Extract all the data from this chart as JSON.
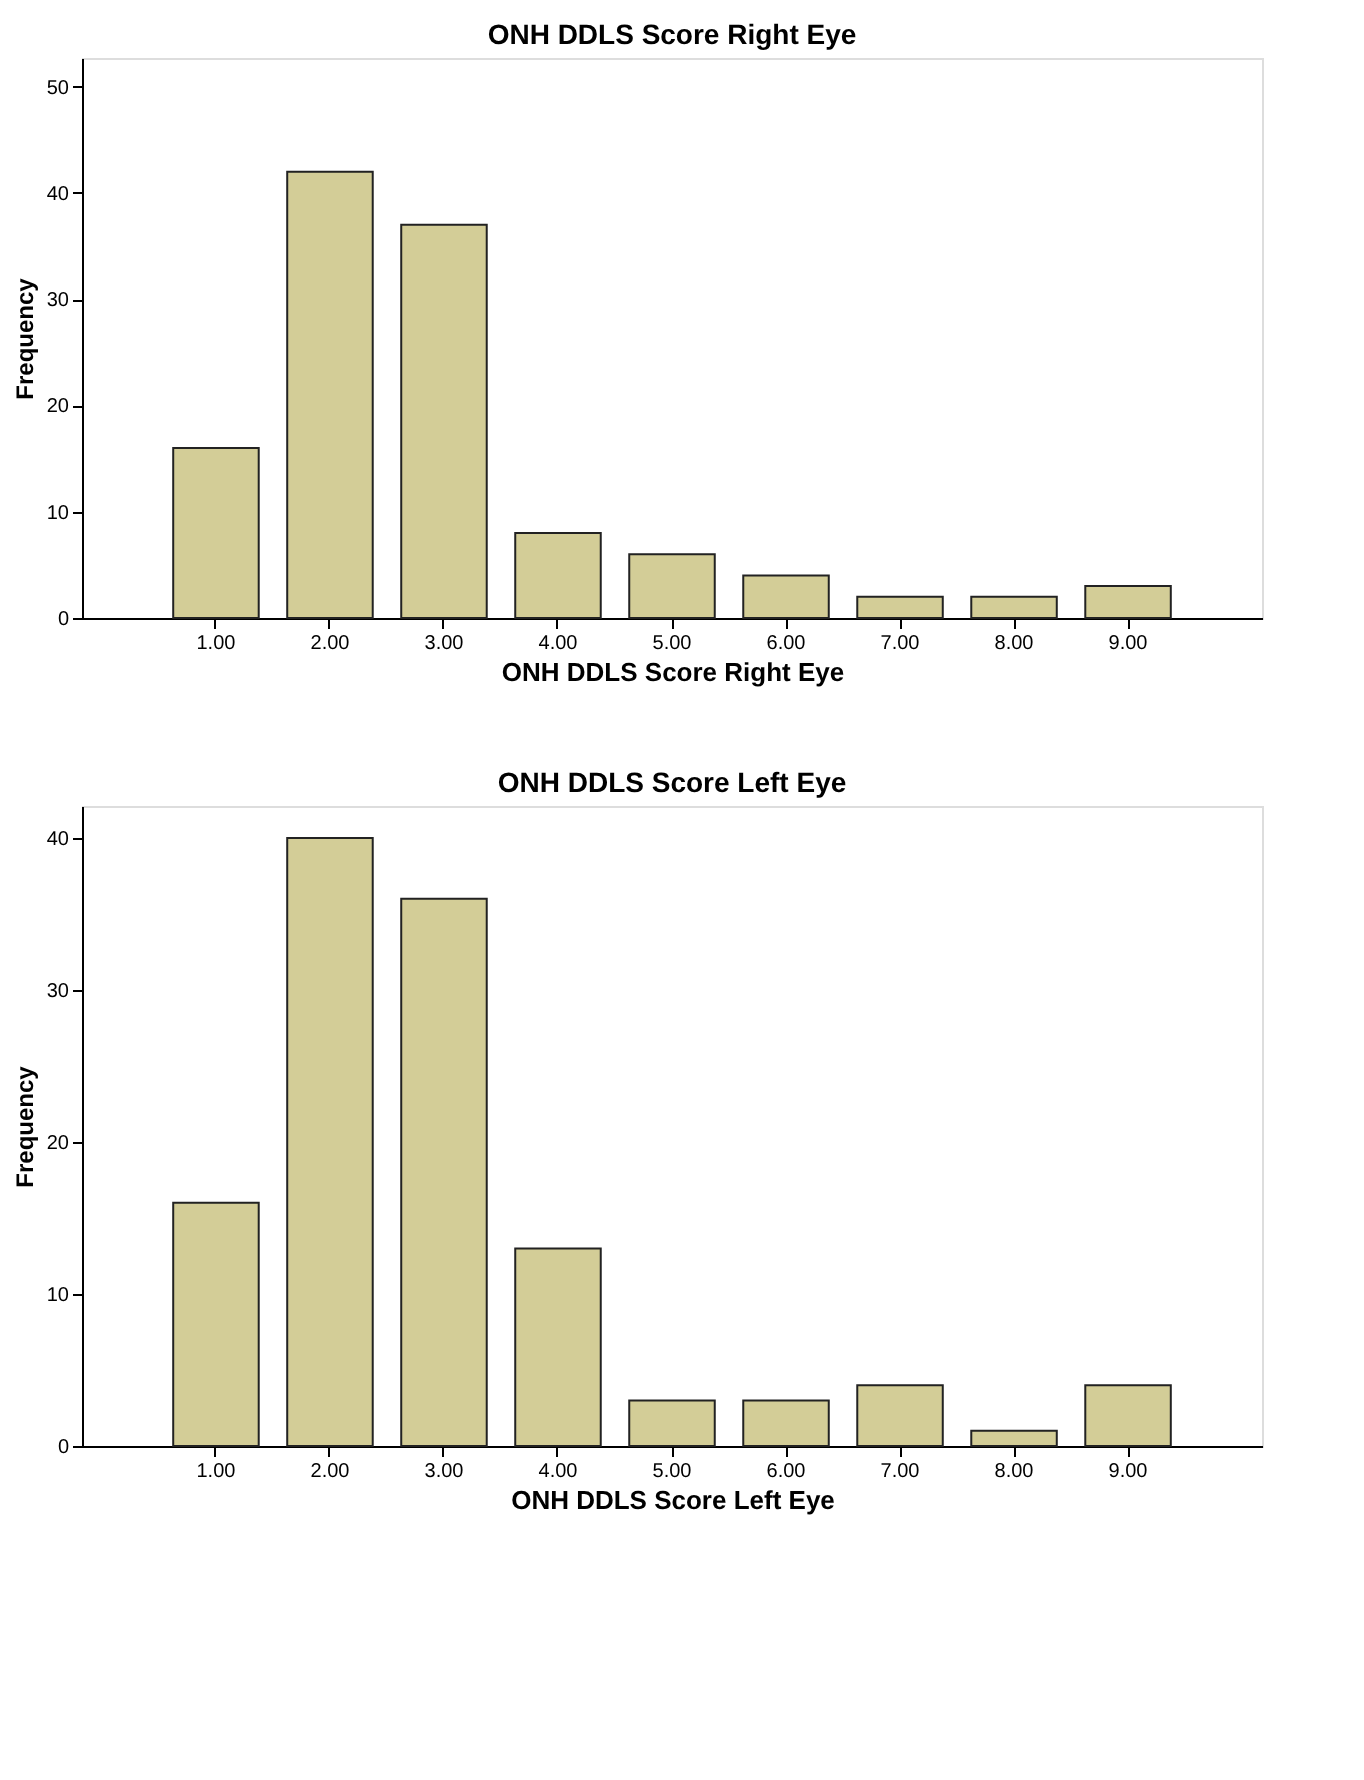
{
  "chart_data": [
    {
      "type": "bar",
      "title": "ONH DDLS Score Right Eye",
      "xlabel": "ONH DDLS Score Right Eye",
      "ylabel": "Frequency",
      "categories": [
        "1.00",
        "2.00",
        "3.00",
        "4.00",
        "5.00",
        "6.00",
        "7.00",
        "8.00",
        "9.00"
      ],
      "values": [
        16,
        42,
        37,
        8,
        6,
        4,
        2,
        2,
        3
      ],
      "color": "#d3cd97",
      "ylim": [
        0,
        52.7
      ],
      "yticks": [
        0,
        10,
        20,
        30,
        40,
        50
      ],
      "grid": false
    },
    {
      "type": "bar",
      "title": "ONH DDLS Score Left Eye",
      "xlabel": "ONH DDLS Score Left Eye",
      "ylabel": "Frequency",
      "categories": [
        "1.00",
        "2.00",
        "3.00",
        "4.00",
        "5.00",
        "6.00",
        "7.00",
        "8.00",
        "9.00"
      ],
      "values": [
        16,
        40,
        36,
        13,
        3,
        3,
        4,
        1,
        4
      ],
      "color": "#d3cd97",
      "ylim": [
        0,
        42.1
      ],
      "yticks": [
        0,
        10,
        20,
        30,
        40
      ],
      "grid": false
    }
  ]
}
